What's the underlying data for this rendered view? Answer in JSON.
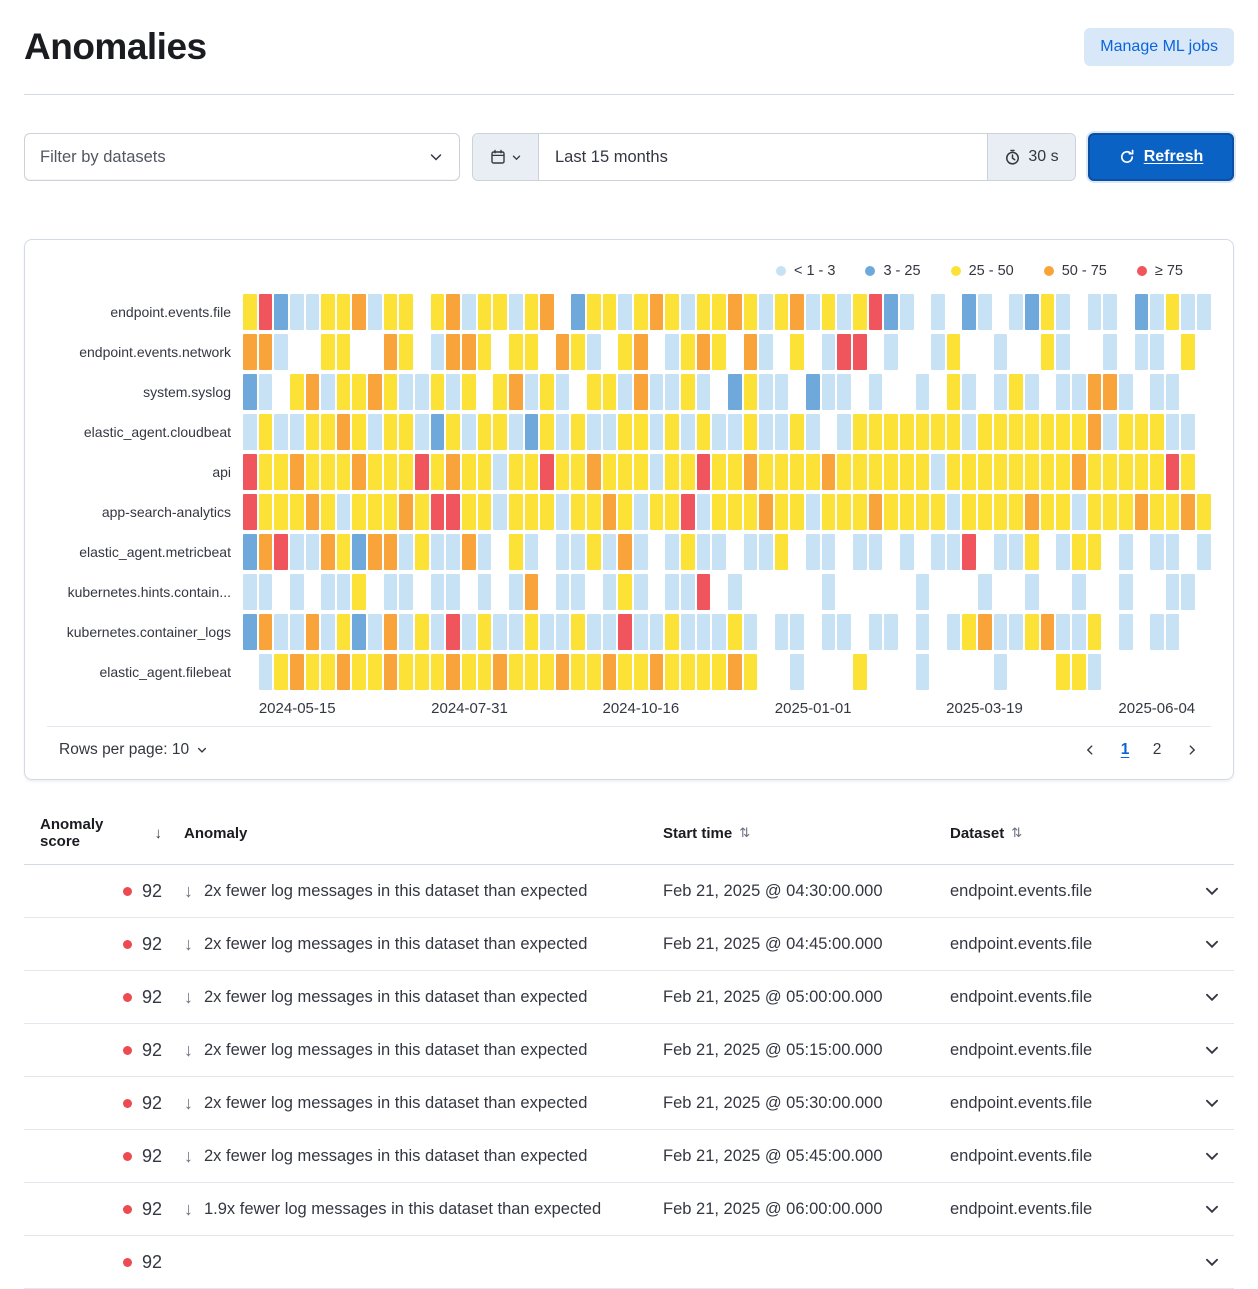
{
  "page": {
    "title": "Anomalies"
  },
  "header": {
    "manage_button": "Manage ML jobs"
  },
  "toolbar": {
    "dataset_filter_placeholder": "Filter by datasets",
    "time_range": "Last 15 months",
    "refresh_interval": "30 s",
    "refresh_button": "Refresh"
  },
  "colors": {
    "primary": "#0B64DD",
    "panel_border": "#D3DAE6"
  },
  "chart_data": {
    "type": "heatmap",
    "legend": [
      {
        "label": "< 1 - 3",
        "color": "#C8E2F5"
      },
      {
        "label": "3 - 25",
        "color": "#6FA8DB"
      },
      {
        "label": "25 - 50",
        "color": "#FCE236"
      },
      {
        "label": "50 - 75",
        "color": "#F9A43B"
      },
      {
        "label": "≥ 75",
        "color": "#F0545C"
      }
    ],
    "cell_colors": {
      "0": "transparent",
      "1": "#C8E2F5",
      "2": "#6FA8DB",
      "3": "#FCE236",
      "4": "#F9A43B",
      "5": "#F0545C"
    },
    "rows": [
      "endpoint.events.file",
      "endpoint.events.network",
      "system.syslog",
      "elastic_agent.cloudbeat",
      "api",
      "app-search-analytics",
      "elastic_agent.metricbeat",
      "kubernetes.hints.contain...",
      "kubernetes.container_logs",
      "elastic_agent.filebeat"
    ],
    "x_ticks": [
      "2024-05-15",
      "2024-07-31",
      "2024-10-16",
      "2025-01-01",
      "2025-03-19",
      "2025-06-04"
    ],
    "x_tick_positions_pct": [
      5.6,
      23.4,
      41.1,
      58.9,
      76.6,
      94.4
    ],
    "matrix": [
      "35211334133034133134023313431334313413135210102101231011021311",
      "44100330043014430330431034013430410301550100130010031001011030",
      "21034133431131303413103314113102311021101001031013101144101100",
      "13113343133123133123131133131311311310133333331333333341333110",
      "53343334333534331335334333133533433334333333133333333433333530",
      "53334313334355331333133431335133343313334333313333433133343343",
      "24511432441311410310113141013110113011011010115011301330101101",
      "11010113011011010140110131011501000001000001000100100100100110",
      "24114132141315131131131151131113101101101101013411341130101100",
      "01343343343334334333433433433334300100030001000010003310000000"
    ]
  },
  "panel_footer": {
    "rows_per_page_label": "Rows per page: 10",
    "pages": [
      "1",
      "2"
    ],
    "active_page": "1"
  },
  "table": {
    "headers": {
      "score": "Anomaly score",
      "anomaly": "Anomaly",
      "start_time": "Start time",
      "dataset": "Dataset"
    },
    "score_dot_color": "#EB4B51",
    "rows": [
      {
        "score": "92",
        "anomaly": "2x fewer log messages in this dataset than expected",
        "start_time": "Feb 21, 2025 @ 04:30:00.000",
        "dataset": "endpoint.events.file"
      },
      {
        "score": "92",
        "anomaly": "2x fewer log messages in this dataset than expected",
        "start_time": "Feb 21, 2025 @ 04:45:00.000",
        "dataset": "endpoint.events.file"
      },
      {
        "score": "92",
        "anomaly": "2x fewer log messages in this dataset than expected",
        "start_time": "Feb 21, 2025 @ 05:00:00.000",
        "dataset": "endpoint.events.file"
      },
      {
        "score": "92",
        "anomaly": "2x fewer log messages in this dataset than expected",
        "start_time": "Feb 21, 2025 @ 05:15:00.000",
        "dataset": "endpoint.events.file"
      },
      {
        "score": "92",
        "anomaly": "2x fewer log messages in this dataset than expected",
        "start_time": "Feb 21, 2025 @ 05:30:00.000",
        "dataset": "endpoint.events.file"
      },
      {
        "score": "92",
        "anomaly": "2x fewer log messages in this dataset than expected",
        "start_time": "Feb 21, 2025 @ 05:45:00.000",
        "dataset": "endpoint.events.file"
      },
      {
        "score": "92",
        "anomaly": "1.9x fewer log messages in this dataset than expected",
        "start_time": "Feb 21, 2025 @ 06:00:00.000",
        "dataset": "endpoint.events.file"
      },
      {
        "score": "92",
        "anomaly": "",
        "start_time": "",
        "dataset": ""
      }
    ]
  }
}
